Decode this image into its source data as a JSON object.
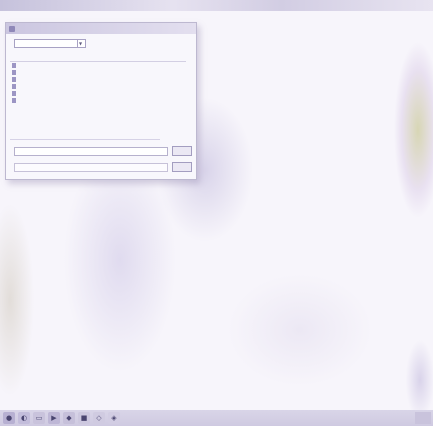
{
  "dialog": {
    "title": "",
    "look_in_label": "",
    "look_in_value": "",
    "list_header": {
      "name": "",
      "size": ""
    },
    "files": [
      {
        "name": "",
        "size": ""
      },
      {
        "name": "",
        "size": ""
      },
      {
        "name": "",
        "size": ""
      },
      {
        "name": "",
        "size": ""
      },
      {
        "name": "",
        "size": ""
      },
      {
        "name": "",
        "size": ""
      }
    ],
    "file_name_label": "",
    "file_type_label": "",
    "file_type_value": "",
    "open_button": "",
    "cancel_button": ""
  },
  "taskbar": {
    "icons": [
      "start-orb-icon",
      "browser-icon",
      "folder-icon",
      "media-icon",
      "app-icon",
      "app-icon",
      "app-icon",
      "app-icon"
    ]
  },
  "colors": {
    "window_bg": "#f8f7fc",
    "desktop": "#f7f5fb",
    "taskbar": "#d5d1e6"
  }
}
